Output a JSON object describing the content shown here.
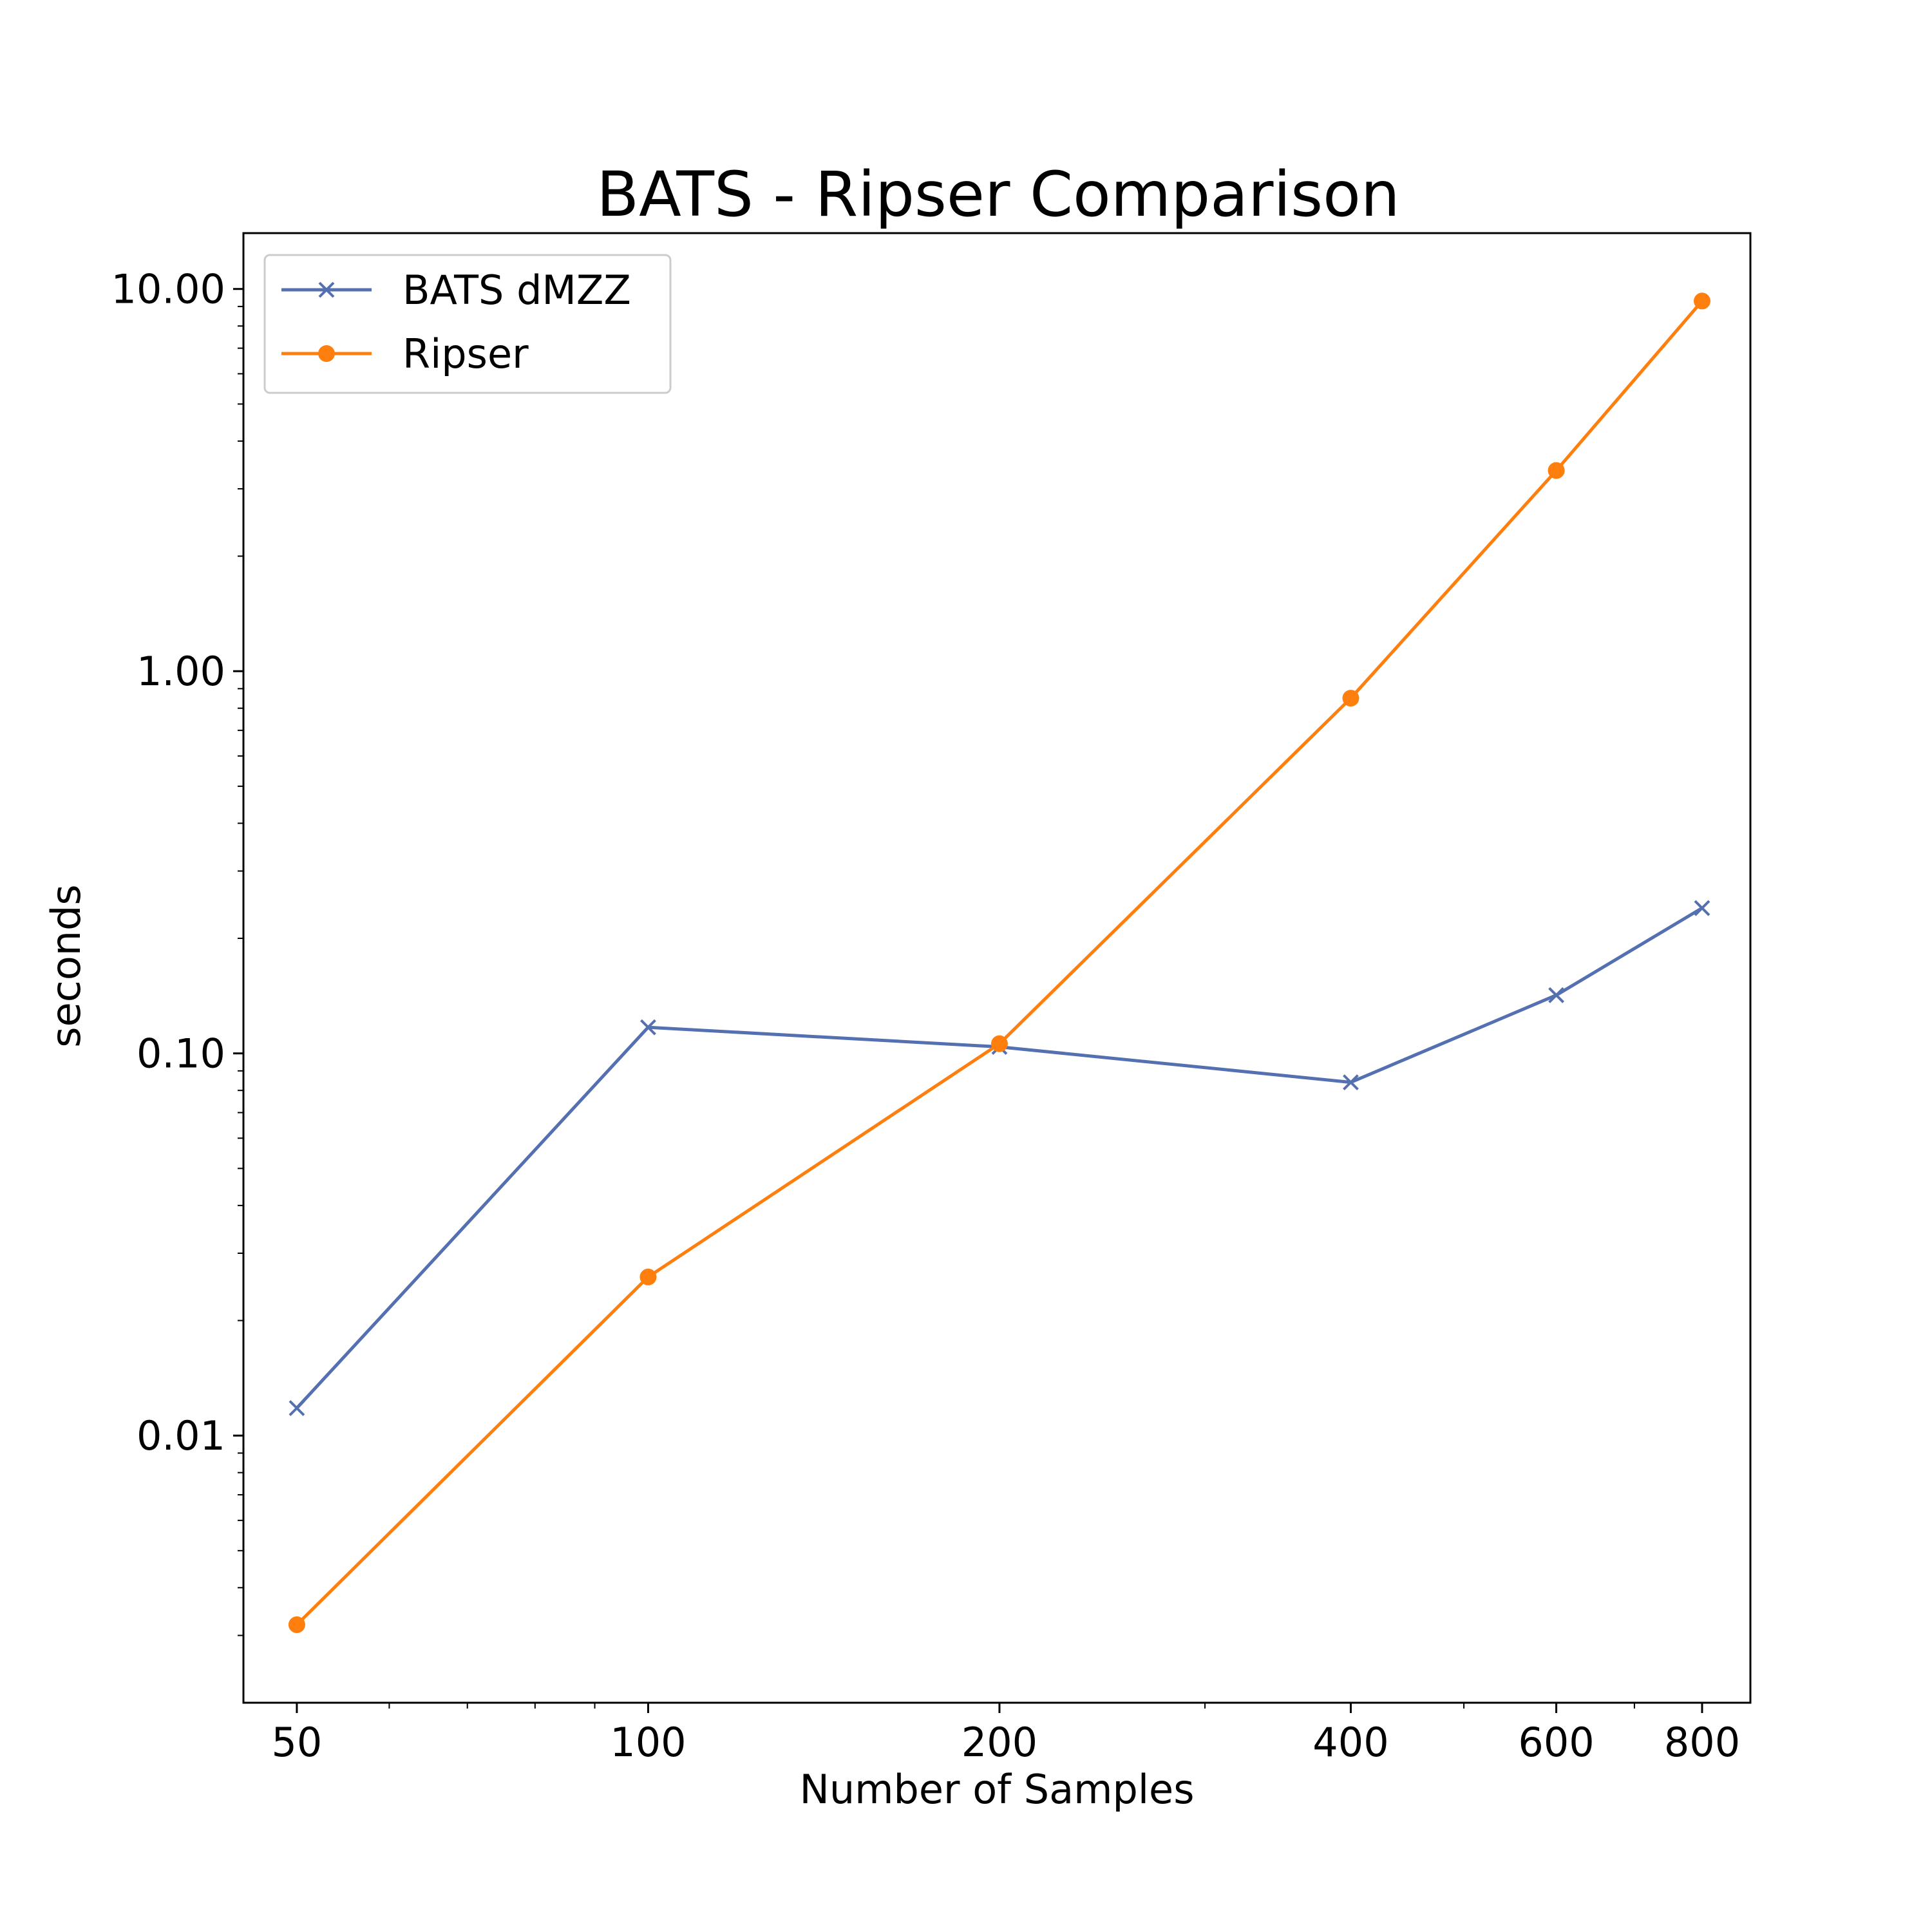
{
  "chart_data": {
    "type": "line",
    "title": "BATS - Ripser Comparison",
    "xlabel": "Number of Samples",
    "ylabel": "seconds",
    "xscale": "log",
    "yscale": "log",
    "xlim": [
      45,
      880
    ],
    "ylim": [
      0.002,
      14
    ],
    "x": [
      50,
      100,
      200,
      400,
      600,
      800
    ],
    "x_tick_labels": [
      "50",
      "100",
      "200",
      "400",
      "600",
      "800"
    ],
    "y_ticks": [
      0.01,
      0.1,
      1,
      10
    ],
    "y_tick_labels": [
      "0.01",
      "0.10",
      "1.00",
      "10.00"
    ],
    "grid": false,
    "legend_position": "top-left",
    "series": [
      {
        "name": "BATS dMZZ",
        "color": "#5470b0",
        "marker": "x",
        "values": [
          0.0118,
          0.117,
          0.104,
          0.084,
          0.142,
          0.24
        ]
      },
      {
        "name": "Ripser",
        "color": "#ff7f0e",
        "marker": "circle",
        "values": [
          0.0032,
          0.026,
          0.106,
          0.85,
          3.35,
          9.3
        ]
      }
    ]
  }
}
